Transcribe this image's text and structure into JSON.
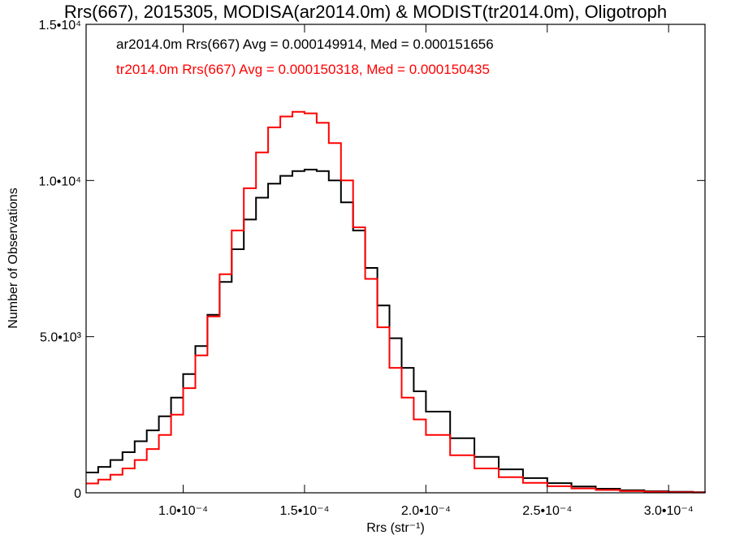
{
  "chart_data": {
    "type": "line",
    "title": "Rrs(667), 2015305, MODISA(ar2014.0m) & MODIST(tr2014.0m), Oligotroph",
    "xlabel": "Rrs (str⁻¹)",
    "ylabel": "Number of Observations",
    "xlim": [
      6e-05,
      0.000315
    ],
    "ylim": [
      0,
      15000
    ],
    "x_ticks": [
      0.0001,
      0.00015,
      0.0002,
      0.00025,
      0.0003
    ],
    "x_tick_labels": [
      "1.0•10⁻⁴",
      "1.5•10⁻⁴",
      "2.0•10⁻⁴",
      "2.5•10⁻⁴",
      "3.0•10⁻⁴"
    ],
    "y_ticks": [
      0,
      5000,
      10000,
      15000
    ],
    "y_tick_labels": [
      "0",
      "5.0•10³",
      "1.0•10⁴",
      "1.5•10⁴"
    ],
    "annotations": [
      "ar2014.0m Rrs(667) Avg = 0.000149914, Med = 0.000151656",
      "tr2014.0m Rrs(667) Avg = 0.000150318, Med = 0.000150435"
    ],
    "x": [
      6e-05,
      6.5e-05,
      7e-05,
      7.5e-05,
      8e-05,
      8.5e-05,
      9e-05,
      9.5e-05,
      0.0001,
      0.000105,
      0.00011,
      0.000115,
      0.00012,
      0.000125,
      0.00013,
      0.000135,
      0.00014,
      0.000145,
      0.00015,
      0.000155,
      0.00016,
      0.000165,
      0.00017,
      0.000175,
      0.00018,
      0.000185,
      0.00019,
      0.000195,
      0.0002,
      0.00021,
      0.00022,
      0.00023,
      0.00024,
      0.00025,
      0.00026,
      0.00027,
      0.00028,
      0.00029,
      0.0003,
      0.00031,
      0.000315
    ],
    "series": [
      {
        "name": "ar2014.0m",
        "color": "#000000",
        "values": [
          650,
          830,
          1050,
          1300,
          1650,
          2000,
          2450,
          3050,
          3800,
          4700,
          5700,
          6750,
          7800,
          8750,
          9450,
          9900,
          10150,
          10300,
          10350,
          10300,
          10000,
          9300,
          8400,
          7200,
          6000,
          4950,
          4000,
          3250,
          2600,
          1750,
          1150,
          750,
          470,
          310,
          200,
          130,
          80,
          50,
          30,
          20,
          10
        ]
      },
      {
        "name": "tr2014.0m",
        "color": "#ff0000",
        "values": [
          300,
          420,
          580,
          780,
          1050,
          1400,
          1850,
          2500,
          3350,
          4400,
          5650,
          7000,
          8400,
          9750,
          10900,
          11700,
          12050,
          12200,
          12150,
          11850,
          11200,
          10000,
          8500,
          6850,
          5300,
          4000,
          3050,
          2350,
          1850,
          1200,
          780,
          500,
          320,
          210,
          140,
          90,
          55,
          30,
          18,
          10,
          5
        ]
      }
    ]
  }
}
